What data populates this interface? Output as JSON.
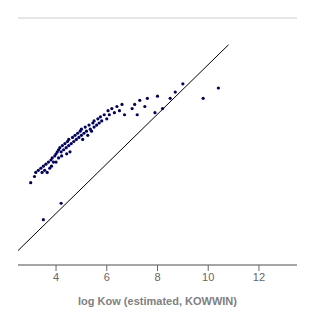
{
  "chart_data": {
    "type": "scatter",
    "title": "",
    "xlabel": "log Kow (estimated, KOWWIN)",
    "xlim": [
      2.5,
      13.5
    ],
    "ylim": [
      -2.5,
      9.5
    ],
    "xticks": [
      4,
      6,
      8,
      10,
      12
    ],
    "yticks": [
      -2.5,
      -1.576923076923077,
      -0.653846153846154,
      0.269230769230769,
      1.192307692307692,
      2.115384615384615,
      3.038461538461538,
      3.961538461538462,
      4.884615384615385,
      5.807692307692308,
      6.730769230769231,
      7.653846153846154,
      8.576923076923077,
      9.5
    ],
    "grid": true,
    "tick_labels": "x",
    "series": [
      {
        "type": "scatter",
        "color": "#000066",
        "x": [
          3.0,
          3.15,
          3.2,
          3.3,
          3.4,
          3.45,
          3.5,
          3.55,
          3.6,
          3.65,
          3.7,
          3.75,
          3.8,
          3.82,
          3.85,
          3.9,
          3.95,
          4.0,
          4.0,
          4.05,
          4.1,
          4.1,
          4.15,
          4.2,
          4.22,
          4.25,
          4.3,
          4.35,
          4.4,
          4.42,
          4.45,
          4.5,
          4.5,
          4.55,
          4.6,
          4.65,
          4.7,
          4.75,
          4.8,
          4.85,
          4.9,
          4.95,
          5.0,
          5.0,
          5.05,
          5.1,
          5.15,
          5.2,
          5.25,
          5.3,
          5.35,
          5.4,
          5.45,
          5.5,
          5.5,
          5.6,
          5.65,
          5.7,
          5.75,
          5.8,
          5.9,
          6.0,
          6.05,
          6.1,
          6.2,
          6.3,
          6.4,
          6.5,
          6.6,
          6.7,
          7.0,
          7.1,
          7.2,
          7.3,
          7.5,
          7.6,
          7.9,
          8.0,
          8.2,
          8.5,
          8.7,
          9.0,
          9.8,
          10.4,
          3.5,
          4.2
        ],
        "values": [
          1.5,
          1.8,
          2.0,
          2.1,
          2.2,
          2.0,
          2.3,
          2.1,
          2.4,
          2.0,
          2.5,
          2.2,
          2.6,
          2.3,
          2.7,
          2.5,
          2.8,
          2.9,
          2.5,
          3.0,
          3.1,
          2.7,
          3.2,
          3.0,
          2.8,
          3.3,
          3.1,
          3.4,
          3.2,
          2.9,
          3.5,
          3.3,
          3.6,
          3.0,
          3.4,
          3.7,
          3.5,
          3.8,
          3.6,
          3.9,
          3.7,
          4.0,
          3.8,
          4.1,
          3.6,
          3.9,
          4.2,
          4.0,
          3.8,
          4.3,
          4.1,
          4.0,
          4.4,
          4.2,
          4.5,
          4.3,
          4.6,
          4.4,
          4.7,
          4.5,
          4.8,
          4.6,
          5.0,
          4.8,
          5.1,
          4.9,
          5.2,
          5.0,
          5.3,
          4.8,
          5.1,
          5.3,
          4.8,
          5.5,
          5.2,
          5.6,
          4.9,
          5.7,
          5.1,
          5.6,
          5.9,
          6.3,
          5.6,
          6.1,
          -0.3,
          0.5
        ]
      },
      {
        "type": "line",
        "color": "#000000",
        "x": [
          2.5,
          10.8
        ],
        "values": [
          -1.8,
          8.2
        ]
      }
    ]
  }
}
